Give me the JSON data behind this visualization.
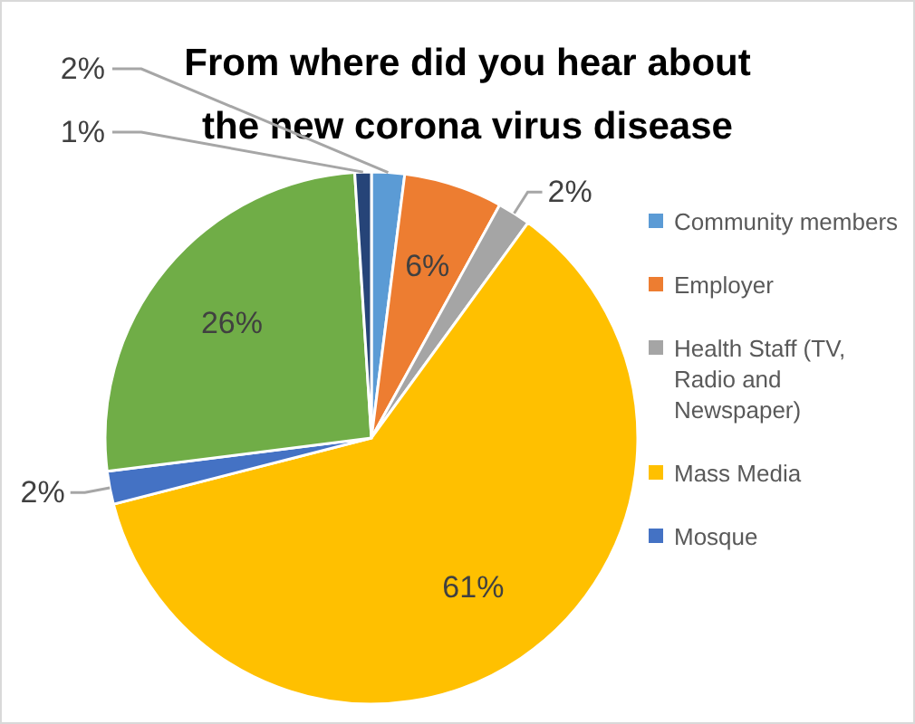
{
  "chart_data": {
    "type": "pie",
    "title": "From where did you hear about the new corona virus disease",
    "categories": [
      "Community members",
      "Employer",
      "Health Staff (TV, Radio and Newspaper)",
      "Mass Media",
      "Mosque",
      null,
      null
    ],
    "values": [
      2,
      6,
      2,
      61,
      2,
      26,
      1
    ],
    "colors": [
      "#5b9bd5",
      "#ed7d31",
      "#a5a5a5",
      "#ffc000",
      "#4472c4",
      "#70ad47",
      "#264478"
    ],
    "value_labels": [
      "2%",
      "6%",
      "2%",
      "61%",
      "2%",
      "26%",
      "1%"
    ],
    "legend": "right"
  }
}
